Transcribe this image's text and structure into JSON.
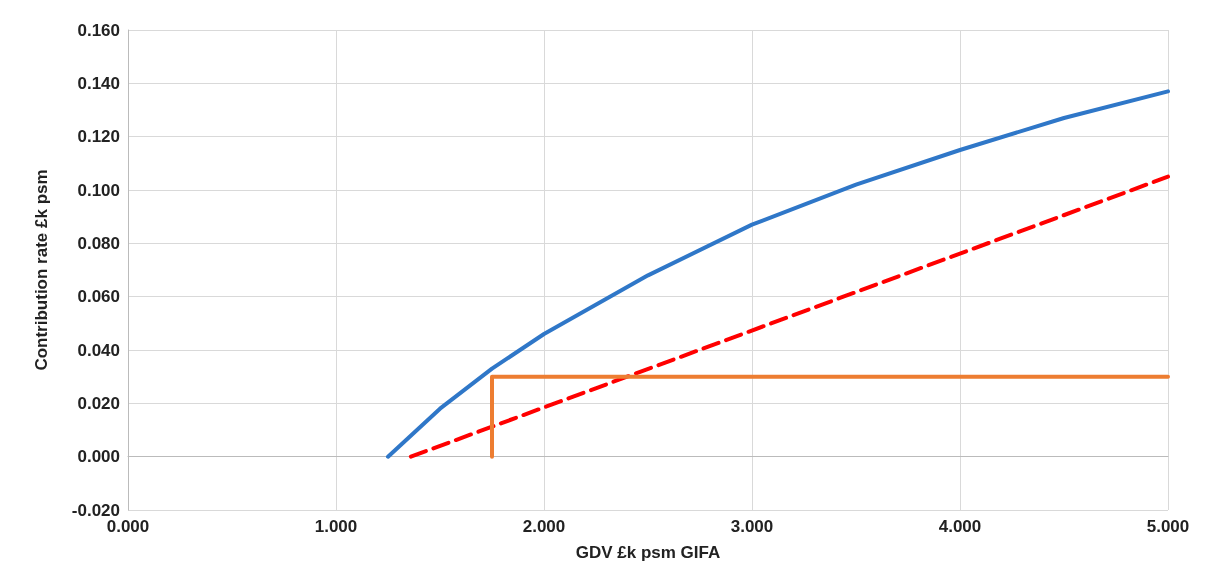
{
  "chart_data": {
    "type": "line",
    "xlabel": "GDV £k psm GIFA",
    "ylabel": "Contribution rate £k psm",
    "xlim": [
      0,
      5
    ],
    "xticks": [
      {
        "value": 0,
        "label": "0.000"
      },
      {
        "value": 1,
        "label": "1.000"
      },
      {
        "value": 2,
        "label": "2.000"
      },
      {
        "value": 3,
        "label": "3.000"
      },
      {
        "value": 4,
        "label": "4.000"
      },
      {
        "value": 5,
        "label": "5.000"
      }
    ],
    "ylim": [
      -0.02,
      0.16
    ],
    "yticks": [
      {
        "value": -0.02,
        "label": "-0.020"
      },
      {
        "value": 0,
        "label": "0.000"
      },
      {
        "value": 0.02,
        "label": "0.020"
      },
      {
        "value": 0.04,
        "label": "0.040"
      },
      {
        "value": 0.06,
        "label": "0.060"
      },
      {
        "value": 0.08,
        "label": "0.080"
      },
      {
        "value": 0.1,
        "label": "0.100"
      },
      {
        "value": 0.12,
        "label": "0.120"
      },
      {
        "value": 0.14,
        "label": "0.140"
      },
      {
        "value": 0.16,
        "label": "0.160"
      }
    ],
    "grid": true,
    "marker": "none",
    "series": [
      {
        "color": "#2f77c8",
        "x": [
          1.25,
          1.5,
          1.75,
          2.0,
          2.5,
          3.0,
          3.5,
          4.0,
          4.5,
          5.0
        ],
        "values": [
          0,
          0.018,
          0.033,
          0.046,
          0.068,
          0.087,
          0.102,
          0.115,
          0.127,
          0.137
        ]
      },
      {
        "color": "#ff0000",
        "line_style": "dashed",
        "x": [
          1.36,
          5.0
        ],
        "values": [
          0,
          0.105
        ]
      },
      {
        "color": "#ed7d31",
        "x": [
          1.75,
          1.75,
          5.0
        ],
        "values": [
          0,
          0.03,
          0.03
        ]
      }
    ]
  }
}
